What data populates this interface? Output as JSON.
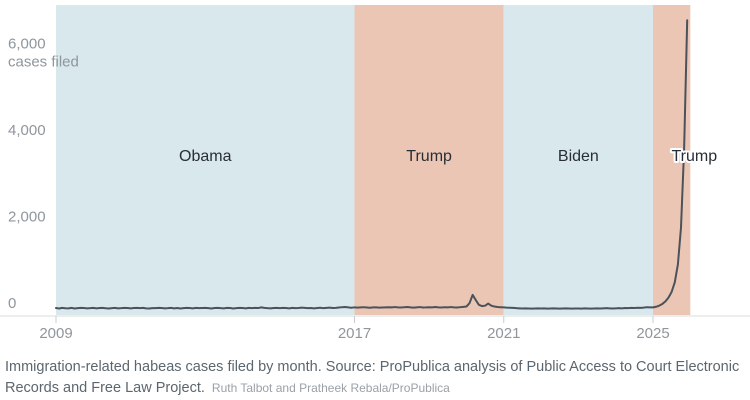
{
  "chart_data": {
    "type": "line",
    "title": "",
    "xlabel": "",
    "ylabel": "cases filed",
    "x_range": [
      2009,
      2026
    ],
    "ylim": [
      0,
      7050
    ],
    "grid": false,
    "legend": "none",
    "line_color": "#4a525a",
    "axis_line_color": "#d9dcde",
    "tick_color": "#c9cdd0",
    "y_ticks": [
      {
        "value": 6000,
        "label": "6,000",
        "sublabel": "cases filed"
      },
      {
        "value": 4000,
        "label": "4,000",
        "sublabel": ""
      },
      {
        "value": 2000,
        "label": "2,000",
        "sublabel": ""
      },
      {
        "value": 0,
        "label": "0",
        "sublabel": ""
      }
    ],
    "x_ticks": [
      {
        "value": 2009,
        "label": "2009"
      },
      {
        "value": 2017,
        "label": "2017"
      },
      {
        "value": 2021,
        "label": "2021"
      },
      {
        "value": 2025,
        "label": "2025"
      }
    ],
    "bands": [
      {
        "label": "Obama",
        "start": 2009,
        "end": 2017,
        "color": "#d9e8ec",
        "halo": false
      },
      {
        "label": "Trump",
        "start": 2017,
        "end": 2021,
        "color": "#ecc6b5",
        "halo": false
      },
      {
        "label": "Biden",
        "start": 2021,
        "end": 2025,
        "color": "#d9e8ec",
        "halo": false
      },
      {
        "label": "Trump",
        "start": 2025,
        "end": 2026,
        "color": "#ecc6b5",
        "halo": true
      }
    ],
    "series": [
      {
        "name": "Immigration-related habeas cases filed per month",
        "start": "2009-01",
        "interval": "month",
        "values": [
          45,
          35,
          50,
          40,
          38,
          48,
          35,
          42,
          50,
          45,
          38,
          42,
          48,
          38,
          45,
          50,
          40,
          35,
          44,
          48,
          38,
          42,
          48,
          45,
          38,
          45,
          50,
          42,
          48,
          38,
          35,
          44,
          42,
          50,
          45,
          38,
          42,
          48,
          38,
          45,
          35,
          42,
          50,
          45,
          38,
          48,
          42,
          45,
          48,
          42,
          35,
          45,
          50,
          42,
          38,
          48,
          45,
          35,
          42,
          48,
          45,
          38,
          48,
          42,
          50,
          45,
          60,
          48,
          42,
          38,
          45,
          48,
          42,
          48,
          45,
          38,
          50,
          42,
          45,
          55,
          48,
          42,
          45,
          38,
          45,
          52,
          42,
          48,
          55,
          45,
          48,
          58,
          65,
          70,
          60,
          52,
          62,
          55,
          60,
          65,
          58,
          52,
          60,
          62,
          55,
          58,
          62,
          65,
          60,
          68,
          62,
          58,
          65,
          70,
          60,
          55,
          62,
          68,
          58,
          60,
          65,
          60,
          70,
          62,
          58,
          65,
          60,
          68,
          62,
          58,
          65,
          72,
          80,
          160,
          350,
          230,
          120,
          90,
          100,
          150,
          100,
          80,
          70,
          65,
          60,
          55,
          52,
          48,
          42,
          38,
          35,
          38,
          35,
          32,
          35,
          38,
          35,
          38,
          32,
          35,
          38,
          35,
          32,
          35,
          38,
          35,
          32,
          35,
          35,
          32,
          38,
          35,
          32,
          35,
          38,
          35,
          38,
          42,
          38,
          35,
          38,
          42,
          38,
          45,
          42,
          48,
          45,
          52,
          48,
          55,
          65,
          60,
          60,
          75,
          100,
          140,
          200,
          290,
          420,
          640,
          1050,
          1900,
          3700,
          6700
        ]
      }
    ]
  },
  "caption": {
    "main": "Immigration-related habeas cases filed by month. Source: ProPublica analysis of Public Access to Court Electronic Records and Free Law Project.",
    "credit": "Ruth Talbot and Pratheek Rebala/ProPublica"
  }
}
